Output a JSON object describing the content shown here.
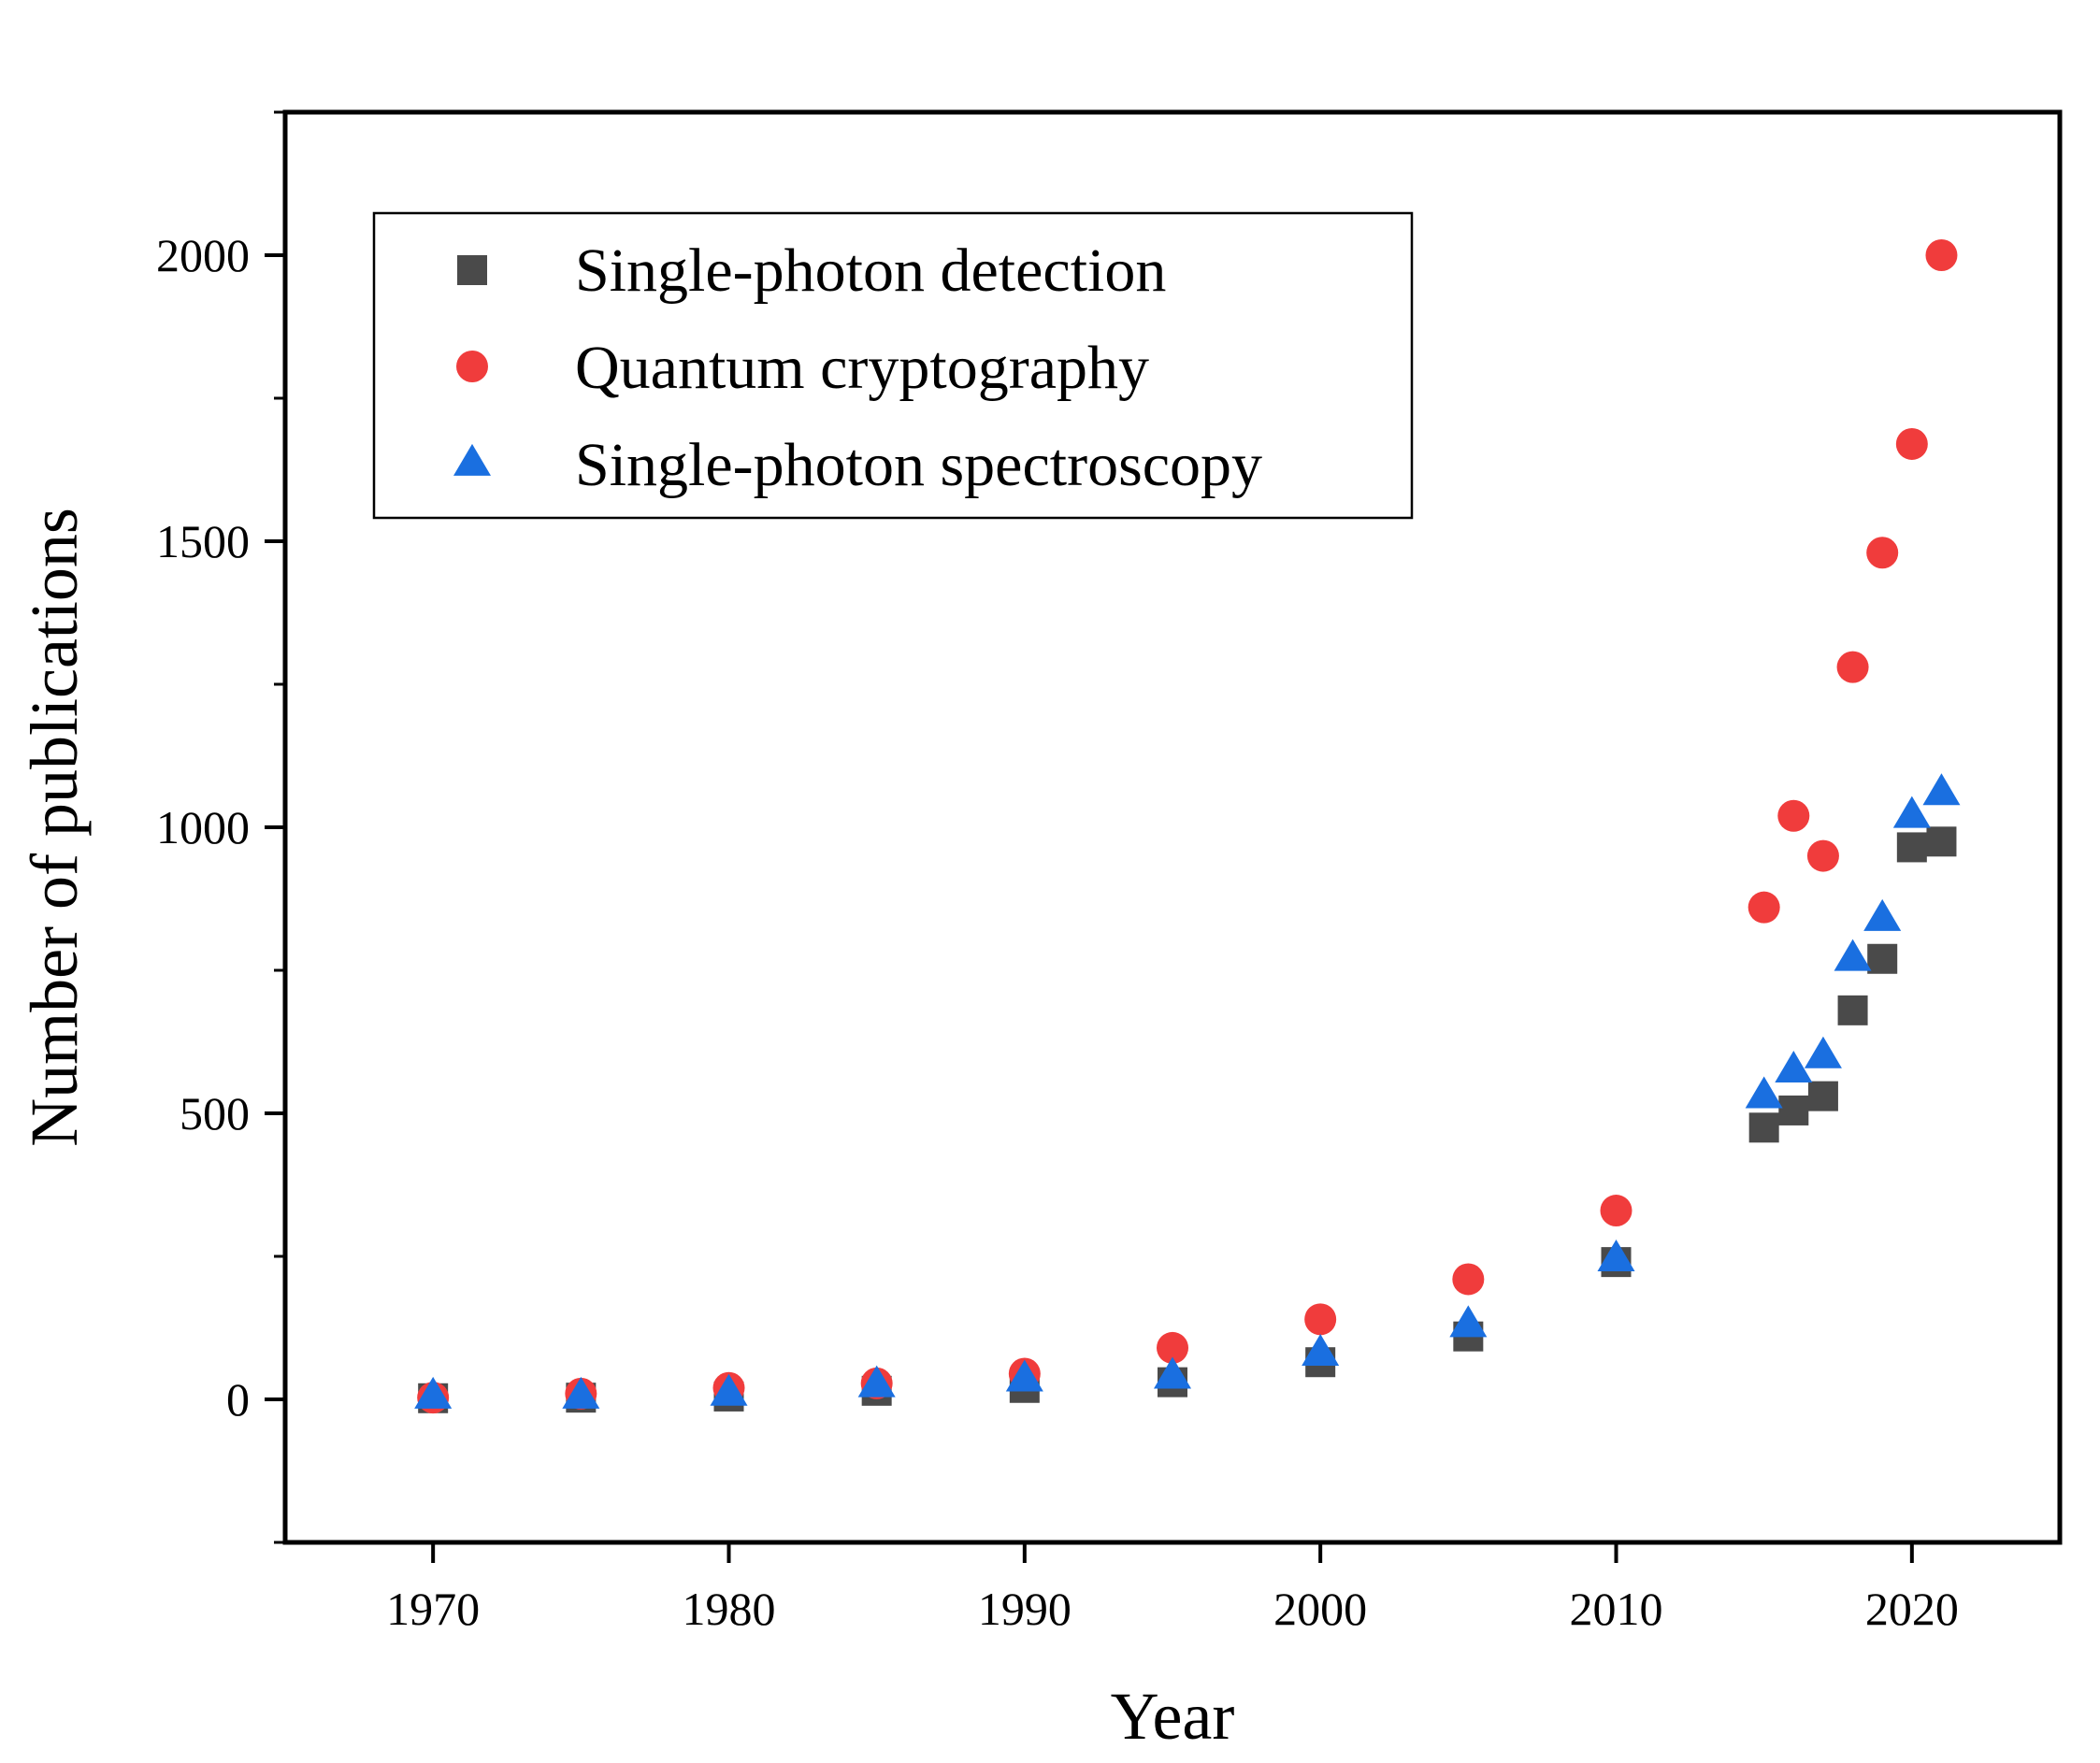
{
  "chart_data": {
    "type": "scatter",
    "title": "",
    "xlabel": "Year",
    "ylabel": "Number of publications",
    "xlim": [
      1965,
      2025
    ],
    "ylim": [
      -250,
      2250
    ],
    "xticks": [
      1970,
      1980,
      1990,
      2000,
      2010,
      2020
    ],
    "xtick_labels": [
      "1970",
      "1980",
      "1990",
      "2000",
      "2010",
      "2020"
    ],
    "yticks": [
      0,
      500,
      1000,
      1500,
      2000
    ],
    "ytick_labels": [
      "0",
      "500",
      "1000",
      "1500",
      "2000"
    ],
    "grid": false,
    "legend_position": "top-left",
    "series": [
      {
        "name": "Single-photon detection",
        "marker": "square",
        "color": "#4a4a4a",
        "x": [
          1970,
          1975,
          1980,
          1985,
          1990,
          1995,
          2000,
          2005,
          2010,
          2015,
          2016,
          2017,
          2018,
          2019,
          2020,
          2021
        ],
        "y": [
          2,
          3,
          5,
          15,
          20,
          30,
          65,
          110,
          240,
          475,
          505,
          530,
          680,
          770,
          965,
          975
        ]
      },
      {
        "name": "Quantum cryptography",
        "marker": "circle",
        "color": "#f03c3c",
        "x": [
          1970,
          1975,
          1980,
          1985,
          1990,
          1995,
          2000,
          2005,
          2010,
          2015,
          2016,
          2017,
          2018,
          2019,
          2020,
          2021
        ],
        "y": [
          3,
          10,
          20,
          28,
          45,
          90,
          140,
          210,
          330,
          860,
          1020,
          950,
          1280,
          1480,
          1670,
          2000
        ]
      },
      {
        "name": "Single-photon spectroscopy",
        "marker": "triangle",
        "color": "#1a6fe0",
        "x": [
          1970,
          1975,
          1980,
          1985,
          1990,
          1995,
          2000,
          2005,
          2010,
          2015,
          2016,
          2017,
          2018,
          2019,
          2020,
          2021
        ],
        "y": [
          5,
          5,
          10,
          25,
          35,
          40,
          80,
          130,
          245,
          530,
          575,
          600,
          770,
          840,
          1020,
          1060
        ]
      }
    ]
  }
}
